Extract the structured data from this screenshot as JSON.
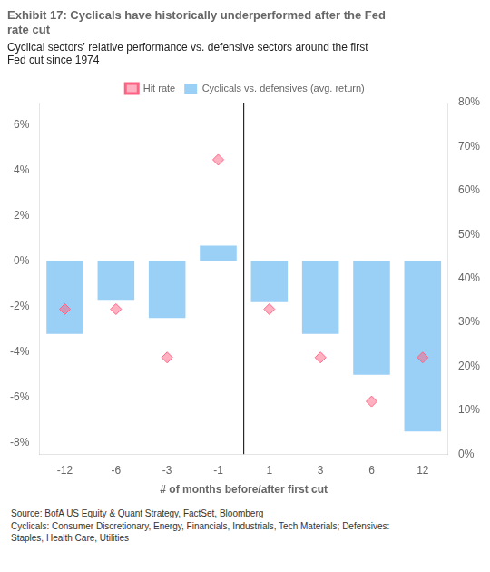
{
  "chart_data": {
    "type": "bar",
    "title": "Exhibit 17: Cyclicals have historically underperformed after the Fed\nrate cut",
    "subtitle": "Cyclical sectors’ relative performance vs. defensive sectors around the first\nFed cut since 1974",
    "xlabel": "# of months before/after first cut",
    "categories": [
      -12,
      -6,
      -3,
      -1,
      1,
      3,
      6,
      12
    ],
    "series": [
      {
        "name": "Cyclicals vs. defensives (avg. return)",
        "type": "bar",
        "values": [
          -3.2,
          -1.7,
          -2.5,
          0.7,
          -1.8,
          -3.2,
          -5.0,
          -7.5
        ]
      },
      {
        "name": "Hit rate",
        "type": "scatter",
        "marker": "diamond",
        "axis": "y2",
        "values": [
          33,
          33,
          22,
          67,
          33,
          22,
          12,
          22
        ]
      }
    ],
    "ylim": [
      -8.5,
      7.0
    ],
    "yticks": [
      {
        "value": -8,
        "label": "-8%"
      },
      {
        "value": -6,
        "label": "-6%"
      },
      {
        "value": -4,
        "label": "-4%"
      },
      {
        "value": -2,
        "label": "-2%"
      },
      {
        "value": 0,
        "label": "0%"
      },
      {
        "value": 2,
        "label": "2%"
      },
      {
        "value": 4,
        "label": "4%"
      },
      {
        "value": 6,
        "label": "6%"
      }
    ],
    "y2lim": [
      0,
      80
    ],
    "y2ticks": [
      {
        "value": 0,
        "label": "0%"
      },
      {
        "value": 10,
        "label": "10%"
      },
      {
        "value": 20,
        "label": "20%"
      },
      {
        "value": 30,
        "label": "30%"
      },
      {
        "value": 40,
        "label": "40%"
      },
      {
        "value": 50,
        "label": "50%"
      },
      {
        "value": 60,
        "label": "60%"
      },
      {
        "value": 70,
        "label": "70%"
      },
      {
        "value": 80,
        "label": "80%"
      }
    ],
    "grid": false,
    "legend": "top",
    "annotations": [
      "Source: BofA US Equity & Quant Strategy, FactSet, Bloomberg",
      "Cyclicals: Consumer Discretionary, Energy, Financials, Industrials, Tech Materials; Defensives:",
      "Staples, Health Care, Utilities"
    ]
  }
}
